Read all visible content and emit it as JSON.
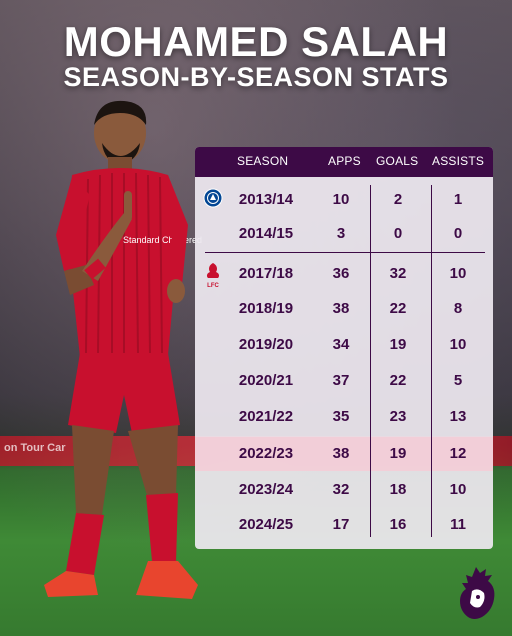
{
  "title": {
    "line1": "MOHAMED SALAH",
    "line2": "SEASON-BY-SEASON STATS"
  },
  "table": {
    "headers": {
      "season": "SEASON",
      "apps": "APPS",
      "goals": "GOALS",
      "assists": "ASSISTS"
    },
    "rows": [
      {
        "season": "2013/14",
        "apps": "10",
        "goals": "2",
        "assists": "1",
        "club": "chelsea"
      },
      {
        "season": "2014/15",
        "apps": "3",
        "goals": "0",
        "assists": "0",
        "club": "chelsea"
      },
      {
        "season": "2017/18",
        "apps": "36",
        "goals": "32",
        "assists": "10",
        "club": "liverpool"
      },
      {
        "season": "2018/19",
        "apps": "38",
        "goals": "22",
        "assists": "8",
        "club": "liverpool"
      },
      {
        "season": "2019/20",
        "apps": "34",
        "goals": "19",
        "assists": "10",
        "club": "liverpool"
      },
      {
        "season": "2020/21",
        "apps": "37",
        "goals": "22",
        "assists": "5",
        "club": "liverpool"
      },
      {
        "season": "2021/22",
        "apps": "35",
        "goals": "23",
        "assists": "13",
        "club": "liverpool"
      },
      {
        "season": "2022/23",
        "apps": "38",
        "goals": "19",
        "assists": "12",
        "club": "liverpool",
        "highlighted": true
      },
      {
        "season": "2023/24",
        "apps": "32",
        "goals": "18",
        "assists": "10",
        "club": "liverpool"
      },
      {
        "season": "2024/25",
        "apps": "17",
        "goals": "16",
        "assists": "11",
        "club": "liverpool"
      }
    ]
  },
  "badges": {
    "chelsea_icon": "chelsea-crest-icon",
    "liverpool_icon": "liverpool-crest-icon",
    "liverpool_label": "LFC",
    "premier_league_icon": "premier-league-lion-icon"
  },
  "player_jersey": {
    "sponsor": "Standard Chartered"
  },
  "background": {
    "board_text": "on Tour Car"
  },
  "colors": {
    "purple": "#3d0a46",
    "liverpool_red": "#c8102e",
    "highlight_row": "#f2cdd7",
    "card_bg": "#eee8f0"
  }
}
